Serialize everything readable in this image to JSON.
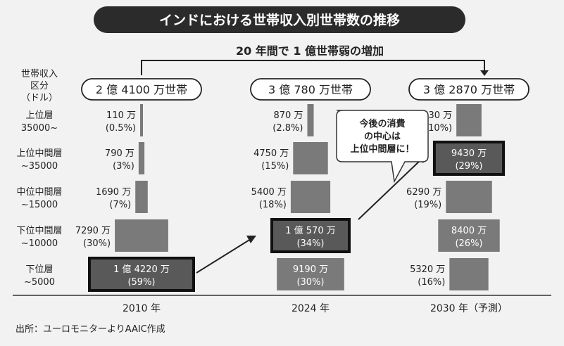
{
  "title": "インドにおける世帯収入別世帯数の推移",
  "subtitle": "20 年間で 1 億世帯弱の増加",
  "axis_header": [
    "世帯収入",
    "区分",
    "（ドル）"
  ],
  "source": "出所：ユーロモニターよりAAIC作成",
  "callout": [
    "今後の消費",
    "の中心は",
    "上位中間層に！"
  ],
  "chart_data": {
    "type": "bar",
    "subtype": "stacked-pyramid",
    "unit": "万世帯",
    "categories": [
      "2010 年",
      "2024 年",
      "2030 年（予測）"
    ],
    "totals": [
      "2 億 4100 万世帯",
      "3 億 780 万世帯",
      "3 億 2870 万世帯"
    ],
    "series": [
      {
        "name": "下位層",
        "range": "~5000",
        "values": [
          14220,
          9190,
          5320
        ],
        "labels": [
          "1 億 4220 万",
          "9190 万",
          "5320 万"
        ],
        "shares": [
          "(59%)",
          "(30%)",
          "(16%)"
        ]
      },
      {
        "name": "下位中間層",
        "range": "~10000",
        "values": [
          7290,
          10570,
          8400
        ],
        "labels": [
          "7290 万",
          "1 億 570 万",
          "8400 万"
        ],
        "shares": [
          "(30%)",
          "(34%)",
          "(26%)"
        ]
      },
      {
        "name": "中位中間層",
        "range": "~15000",
        "values": [
          1690,
          5400,
          6290
        ],
        "labels": [
          "1690 万",
          "5400 万",
          "6290 万"
        ],
        "shares": [
          "(7%)",
          "(18%)",
          "(19%)"
        ]
      },
      {
        "name": "上位中間層",
        "range": "~35000",
        "values": [
          790,
          4750,
          9430
        ],
        "labels": [
          "790 万",
          "4750 万",
          "9430 万"
        ],
        "shares": [
          "(3%)",
          "(15%)",
          "(29%)"
        ]
      },
      {
        "name": "上位層",
        "range": "35000~",
        "values": [
          110,
          870,
          3430
        ],
        "labels": [
          "110 万",
          "870 万",
          "3430 万"
        ],
        "shares": [
          "(0.5%)",
          "(2.8%)",
          "(10%)"
        ]
      }
    ],
    "highlights": [
      {
        "category": 0,
        "series": 0
      },
      {
        "category": 1,
        "series": 1
      },
      {
        "category": 2,
        "series": 3
      }
    ],
    "colors": {
      "bar": "#7a7a7a",
      "highlight": "#595959",
      "highlight_border": "#111111",
      "background": "#f2f2f2"
    }
  }
}
